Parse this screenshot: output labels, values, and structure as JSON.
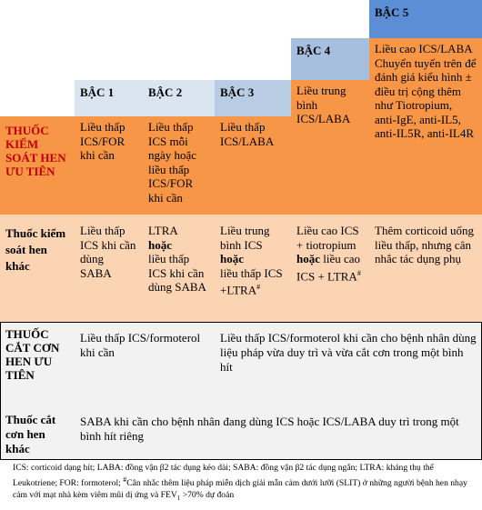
{
  "levels": {
    "b1": "BẬC 1",
    "b2": "BẬC 2",
    "b3": "BẬC 3",
    "b4": "BẬC 4",
    "b5": "BẬC 5"
  },
  "row1": {
    "head": "THUỐC KIỂM SOÁT HEN ƯU TIÊN",
    "c1": "Liều thấp ICS/FOR khi cần",
    "c2": "Liều thấp ICS mỗi ngày hoặc liều thấp ICS/FOR khi cần",
    "c3": "Liều thấp ICS/LABA",
    "c4": "Liều trung bình ICS/LABA",
    "c5": "Liều cao ICS/LABA Chuyển tuyến trên để đánh giá kiểu hình ± điều trị cộng thêm như Tiotropium, anti-IgE, anti-IL5, anti-IL5R, anti-IL4R"
  },
  "row2": {
    "head": "Thuốc kiểm soát hen khác",
    "c1": "Liều thấp ICS khi cần dùng SABA",
    "c2a": "LTRA",
    "c2b": "hoặc",
    "c2c": "liều thấp ICS khi cần dùng SABA",
    "c3a": "Liều trung bình ICS",
    "c3b": "hoặc",
    "c3c": "liều thấp ICS +LTRA",
    "c3sup": "#",
    "c4a": "Liều cao ICS + tiotropium",
    "c4b": "hoặc",
    "c4c": "liều cao ICS + LTRA",
    "c4sup": "#",
    "c5": "Thêm corticoid uống liều thấp, nhưng cân nhắc tác dụng phụ"
  },
  "row3": {
    "head": "THUỐC CẮT CƠN HEN ƯU TIÊN",
    "c12": "Liều thấp ICS/formoterol khi cần",
    "c345": "Liều thấp ICS/formoterol khi cần cho bệnh nhân dùng liệu pháp vừa duy trì và vừa cắt cơn trong một bình hít"
  },
  "row4": {
    "head": "Thuốc cắt cơn hen khác",
    "c": "SABA khi cần cho bệnh nhân đang dùng ICS hoặc ICS/LABA duy trì trong một bình hít riêng"
  },
  "footnote": {
    "a": "ICS: corticoid dạng hít; LABA: đồng vận β2 tác dụng kéo dài; SABA: đồng vận β2 tác dụng ngắn; LTRA: kháng thụ thể Leukotriene; FOR: formoterol;",
    "sup": "#",
    "b": "Cân nhắc thêm liệu pháp miễn dịch giải mẫn cảm dưới lưỡi (SLIT) ở những người bệnh hen nhạy cảm với mạt nhà kèm viêm mũi dị ứng và FEV",
    "sub": "1",
    "c": ">70% dự đoán"
  }
}
